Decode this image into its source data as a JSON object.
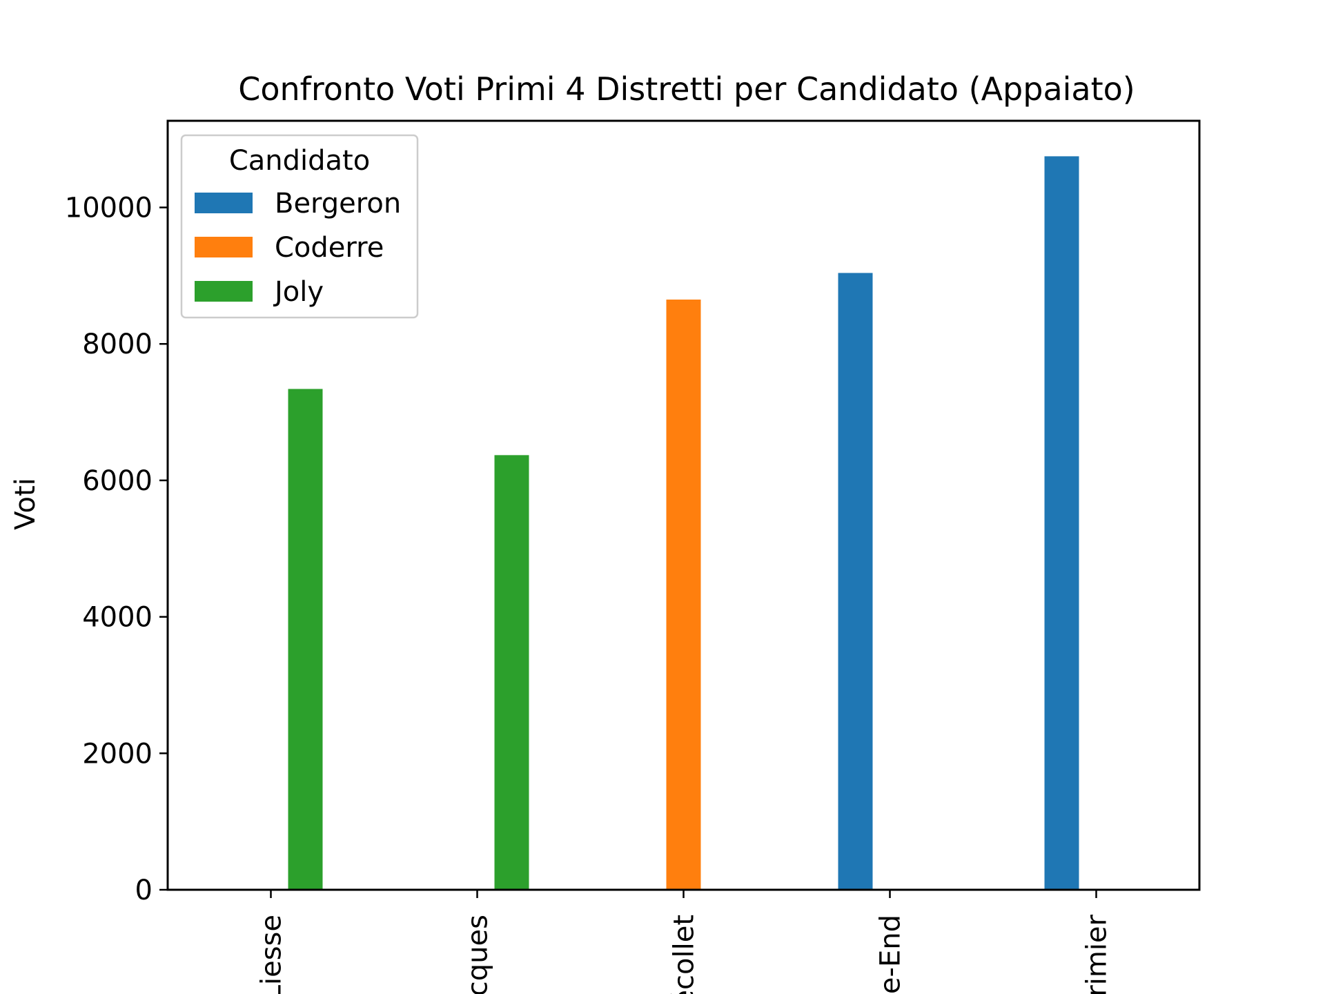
{
  "chart_data": {
    "type": "bar",
    "title": "Confronto Voti Primi 4 Distretti per Candidato (Appaiato)",
    "xlabel": "",
    "ylabel": "Voti",
    "categories": [
      "Liesse",
      "cques",
      "écollet",
      "e-End",
      "rimier"
    ],
    "series": [
      {
        "name": "Bergeron",
        "color": "#1f77b4",
        "values": [
          0,
          0,
          0,
          9040,
          10750
        ]
      },
      {
        "name": "Coderre",
        "color": "#ff7f0e",
        "values": [
          0,
          0,
          8650,
          0,
          0
        ]
      },
      {
        "name": "Joly",
        "color": "#2ca02c",
        "values": [
          7340,
          6370,
          0,
          0,
          0
        ]
      }
    ],
    "ylim": [
      0,
      11270
    ],
    "yticks": [
      0,
      2000,
      4000,
      6000,
      8000,
      10000
    ],
    "ytick_labels": [
      "0",
      "2000",
      "4000",
      "6000",
      "8000",
      "10000"
    ],
    "legend": {
      "title": "Candidato",
      "position": "top-left"
    },
    "grid": false
  }
}
